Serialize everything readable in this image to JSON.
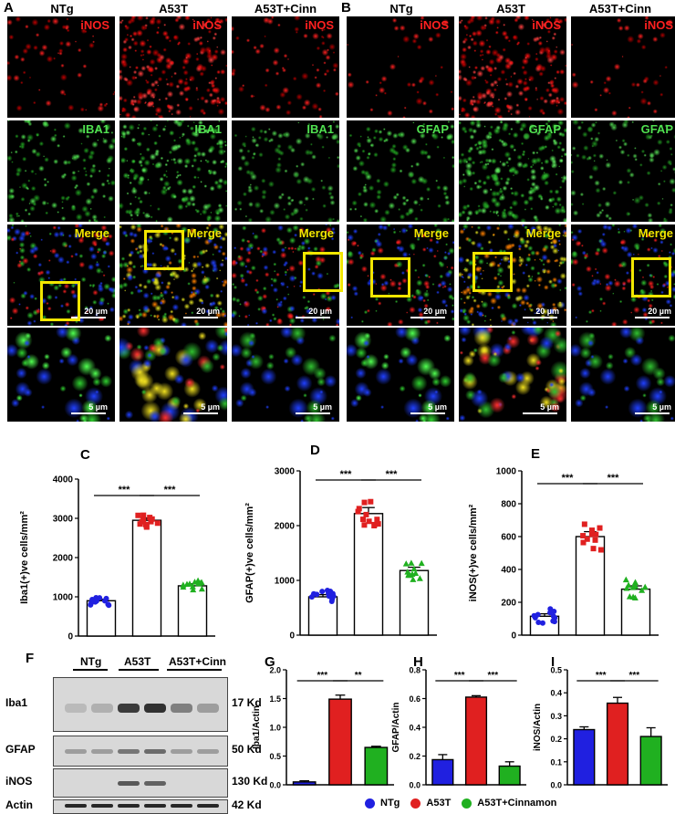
{
  "panels": {
    "A": "A",
    "B": "B",
    "C": "C",
    "D": "D",
    "E": "E",
    "F": "F",
    "G": "G",
    "H": "H",
    "I": "I"
  },
  "micrograph_A": {
    "columns": [
      "NTg",
      "A53T",
      "A53T+Cinn"
    ],
    "row_labels": [
      "iNOS",
      "IBA1",
      "Merge"
    ],
    "scale_merge": "20 µm",
    "scale_zoom": "5 µm"
  },
  "micrograph_B": {
    "columns": [
      "NTg",
      "A53T",
      "A53T+Cinn"
    ],
    "row_labels": [
      "iNOS",
      "GFAP",
      "Merge"
    ],
    "scale_merge": "20 µm",
    "scale_zoom": "5 µm"
  },
  "western_blot": {
    "groups": [
      "NTg",
      "A53T",
      "A53T+Cinn"
    ],
    "rows": [
      {
        "protein": "Iba1",
        "size": "17 Kd"
      },
      {
        "protein": "GFAP",
        "size": "50 Kd"
      },
      {
        "protein": "iNOS",
        "size": "130 Kd"
      },
      {
        "protein": "Actin",
        "size": "42 Kd"
      }
    ]
  },
  "legend": {
    "items": [
      {
        "label": "NTg",
        "color": "#2020e0"
      },
      {
        "label": "A53T",
        "color": "#e02020"
      },
      {
        "label": "A53T+Cinnamon",
        "color": "#20b020"
      }
    ]
  },
  "chart_data": [
    {
      "id": "C",
      "type": "bar",
      "ylabel": "Iba1(+)ve cells/mm²",
      "ylim": [
        0,
        4000
      ],
      "yticks": [
        "0",
        "1000",
        "2000",
        "3000",
        "4000"
      ],
      "categories": [
        "NTg",
        "A53T",
        "A53T+Cinn"
      ],
      "values": [
        900,
        2950,
        1280
      ],
      "errors": [
        40,
        60,
        50
      ],
      "colors": [
        "#ffffff",
        "#ffffff",
        "#ffffff"
      ],
      "point_colors": [
        "#2020e0",
        "#e02020",
        "#20b020"
      ],
      "significance": [
        "***",
        "***"
      ]
    },
    {
      "id": "D",
      "type": "bar",
      "ylabel": "GFAP(+)ve cells/mm²",
      "ylim": [
        0,
        3000
      ],
      "yticks": [
        "0",
        "1000",
        "2000",
        "3000"
      ],
      "categories": [
        "NTg",
        "A53T",
        "A53T+Cinn"
      ],
      "values": [
        700,
        2220,
        1180
      ],
      "errors": [
        40,
        110,
        60
      ],
      "colors": [
        "#ffffff",
        "#ffffff",
        "#ffffff"
      ],
      "point_colors": [
        "#2020e0",
        "#e02020",
        "#20b020"
      ],
      "significance": [
        "***",
        "***"
      ]
    },
    {
      "id": "E",
      "type": "bar",
      "ylabel": "iNOS(+)ve cells/mm²",
      "ylim": [
        0,
        1000
      ],
      "yticks": [
        "0",
        "200",
        "400",
        "600",
        "800",
        "1000"
      ],
      "categories": [
        "NTg",
        "A53T",
        "A53T+Cinn"
      ],
      "values": [
        115,
        600,
        280
      ],
      "errors": [
        15,
        30,
        20
      ],
      "colors": [
        "#ffffff",
        "#ffffff",
        "#ffffff"
      ],
      "point_colors": [
        "#2020e0",
        "#e02020",
        "#20b020"
      ],
      "significance": [
        "***",
        "***"
      ]
    },
    {
      "id": "G",
      "type": "bar",
      "ylabel": "Iba1/Actin",
      "ylim": [
        0,
        2.0
      ],
      "yticks": [
        "0.0",
        "0.5",
        "1.0",
        "1.5",
        "2.0"
      ],
      "categories": [
        "NTg",
        "A53T",
        "A53T+Cinnamon"
      ],
      "values": [
        0.05,
        1.49,
        0.65
      ],
      "errors": [
        0.02,
        0.07,
        0.02
      ],
      "colors": [
        "#2020e0",
        "#e02020",
        "#20b020"
      ],
      "significance": [
        "***",
        "**"
      ]
    },
    {
      "id": "H",
      "type": "bar",
      "ylabel": "GFAP/Actin",
      "ylim": [
        0,
        0.8
      ],
      "yticks": [
        "0.0",
        "0.2",
        "0.4",
        "0.6",
        "0.8"
      ],
      "categories": [
        "NTg",
        "A53T",
        "A53T+Cinnamon"
      ],
      "values": [
        0.175,
        0.61,
        0.13
      ],
      "errors": [
        0.035,
        0.01,
        0.03
      ],
      "colors": [
        "#2020e0",
        "#e02020",
        "#20b020"
      ],
      "significance": [
        "***",
        "***"
      ]
    },
    {
      "id": "I",
      "type": "bar",
      "ylabel": "iNOS/Actin",
      "ylim": [
        0,
        0.5
      ],
      "yticks": [
        "0.0",
        "0.1",
        "0.2",
        "0.3",
        "0.4",
        "0.5"
      ],
      "categories": [
        "NTg",
        "A53T",
        "A53T+Cinnamon"
      ],
      "values": [
        0.24,
        0.355,
        0.21
      ],
      "errors": [
        0.012,
        0.025,
        0.038
      ],
      "colors": [
        "#2020e0",
        "#e02020",
        "#20b020"
      ],
      "significance": [
        "***",
        "***"
      ]
    }
  ]
}
